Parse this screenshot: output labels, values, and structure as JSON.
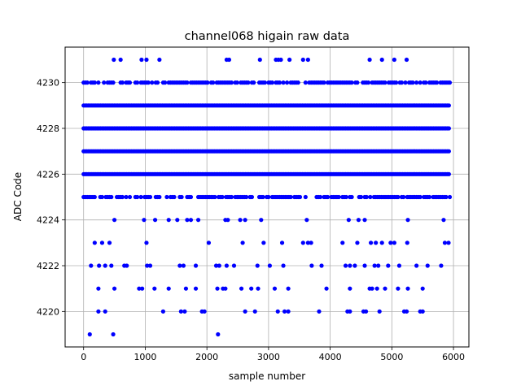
{
  "chart_data": {
    "type": "scatter",
    "title": "channel068 higain raw data",
    "xlabel": "sample number",
    "ylabel": "ADC Code",
    "xlim": [
      -300,
      6250
    ],
    "ylim": [
      4218.45,
      4231.55
    ],
    "xticks": [
      0,
      1000,
      2000,
      3000,
      4000,
      5000,
      6000
    ],
    "yticks": [
      4220,
      4222,
      4224,
      4226,
      4228,
      4230
    ],
    "grid": true,
    "marker_color": "#0000ff",
    "series": [
      {
        "values_dense": [
          {
            "y": 4228,
            "x_range": [
              0,
              5940
            ]
          },
          {
            "y": 4227,
            "x_range": [
              0,
              5940
            ]
          },
          {
            "y": 4226,
            "x_range": [
              0,
              5940
            ]
          },
          {
            "y": 4229,
            "x_range": [
              0,
              5940
            ]
          }
        ],
        "values_semi_dense": [
          {
            "y": 4230,
            "x_range": [
              0,
              5940
            ]
          },
          {
            "y": 4225,
            "x_range": [
              0,
              5940
            ]
          }
        ],
        "points": [
          {
            "x": 490,
            "y": 4231
          },
          {
            "x": 600,
            "y": 4231
          },
          {
            "x": 940,
            "y": 4231
          },
          {
            "x": 1020,
            "y": 4231
          },
          {
            "x": 1230,
            "y": 4231
          },
          {
            "x": 2320,
            "y": 4231
          },
          {
            "x": 2360,
            "y": 4231
          },
          {
            "x": 2860,
            "y": 4231
          },
          {
            "x": 3120,
            "y": 4231
          },
          {
            "x": 3160,
            "y": 4231
          },
          {
            "x": 3200,
            "y": 4231
          },
          {
            "x": 3340,
            "y": 4231
          },
          {
            "x": 3560,
            "y": 4231
          },
          {
            "x": 3640,
            "y": 4231
          },
          {
            "x": 4640,
            "y": 4231
          },
          {
            "x": 4840,
            "y": 4231
          },
          {
            "x": 5040,
            "y": 4231
          },
          {
            "x": 5240,
            "y": 4231
          },
          {
            "x": 500,
            "y": 4224
          },
          {
            "x": 980,
            "y": 4224
          },
          {
            "x": 1160,
            "y": 4224
          },
          {
            "x": 1380,
            "y": 4224
          },
          {
            "x": 1520,
            "y": 4224
          },
          {
            "x": 1680,
            "y": 4224
          },
          {
            "x": 1740,
            "y": 4224
          },
          {
            "x": 1860,
            "y": 4224
          },
          {
            "x": 2300,
            "y": 4224
          },
          {
            "x": 2340,
            "y": 4224
          },
          {
            "x": 2540,
            "y": 4224
          },
          {
            "x": 2620,
            "y": 4224
          },
          {
            "x": 2880,
            "y": 4224
          },
          {
            "x": 3620,
            "y": 4224
          },
          {
            "x": 4300,
            "y": 4224
          },
          {
            "x": 4460,
            "y": 4224
          },
          {
            "x": 4560,
            "y": 4224
          },
          {
            "x": 5260,
            "y": 4224
          },
          {
            "x": 5840,
            "y": 4224
          },
          {
            "x": 2580,
            "y": 4223
          },
          {
            "x": 3220,
            "y": 4223
          },
          {
            "x": 3560,
            "y": 4223
          },
          {
            "x": 3640,
            "y": 4223
          },
          {
            "x": 1020,
            "y": 4223
          },
          {
            "x": 4200,
            "y": 4223
          },
          {
            "x": 4660,
            "y": 4223
          },
          {
            "x": 4840,
            "y": 4223
          },
          {
            "x": 5040,
            "y": 4223
          },
          {
            "x": 4980,
            "y": 4223
          },
          {
            "x": 5860,
            "y": 4223
          },
          {
            "x": 4740,
            "y": 4223
          },
          {
            "x": 4440,
            "y": 4223
          },
          {
            "x": 5250,
            "y": 4223
          },
          {
            "x": 5920,
            "y": 4223
          },
          {
            "x": 180,
            "y": 4223
          },
          {
            "x": 300,
            "y": 4223
          },
          {
            "x": 420,
            "y": 4223
          },
          {
            "x": 2030,
            "y": 4223
          },
          {
            "x": 2920,
            "y": 4223
          },
          {
            "x": 3690,
            "y": 4223
          },
          {
            "x": 120,
            "y": 4222
          },
          {
            "x": 250,
            "y": 4222
          },
          {
            "x": 350,
            "y": 4222
          },
          {
            "x": 450,
            "y": 4222
          },
          {
            "x": 660,
            "y": 4222
          },
          {
            "x": 700,
            "y": 4222
          },
          {
            "x": 1030,
            "y": 4222
          },
          {
            "x": 1080,
            "y": 4222
          },
          {
            "x": 1560,
            "y": 4222
          },
          {
            "x": 1620,
            "y": 4222
          },
          {
            "x": 1820,
            "y": 4222
          },
          {
            "x": 2150,
            "y": 4222
          },
          {
            "x": 2200,
            "y": 4222
          },
          {
            "x": 2320,
            "y": 4222
          },
          {
            "x": 2440,
            "y": 4222
          },
          {
            "x": 2820,
            "y": 4222
          },
          {
            "x": 3020,
            "y": 4222
          },
          {
            "x": 3240,
            "y": 4222
          },
          {
            "x": 3700,
            "y": 4222
          },
          {
            "x": 3860,
            "y": 4222
          },
          {
            "x": 4250,
            "y": 4222
          },
          {
            "x": 4320,
            "y": 4222
          },
          {
            "x": 4400,
            "y": 4222
          },
          {
            "x": 4560,
            "y": 4222
          },
          {
            "x": 4720,
            "y": 4222
          },
          {
            "x": 4780,
            "y": 4222
          },
          {
            "x": 4940,
            "y": 4222
          },
          {
            "x": 5120,
            "y": 4222
          },
          {
            "x": 5400,
            "y": 4222
          },
          {
            "x": 5580,
            "y": 4222
          },
          {
            "x": 5800,
            "y": 4222
          },
          {
            "x": 240,
            "y": 4221
          },
          {
            "x": 500,
            "y": 4221
          },
          {
            "x": 900,
            "y": 4221
          },
          {
            "x": 950,
            "y": 4221
          },
          {
            "x": 1150,
            "y": 4221
          },
          {
            "x": 1380,
            "y": 4221
          },
          {
            "x": 1660,
            "y": 4221
          },
          {
            "x": 1820,
            "y": 4221
          },
          {
            "x": 2170,
            "y": 4221
          },
          {
            "x": 2260,
            "y": 4221
          },
          {
            "x": 2300,
            "y": 4221
          },
          {
            "x": 2560,
            "y": 4221
          },
          {
            "x": 2720,
            "y": 4221
          },
          {
            "x": 2830,
            "y": 4221
          },
          {
            "x": 3100,
            "y": 4221
          },
          {
            "x": 3320,
            "y": 4221
          },
          {
            "x": 3940,
            "y": 4221
          },
          {
            "x": 4320,
            "y": 4221
          },
          {
            "x": 4640,
            "y": 4221
          },
          {
            "x": 4680,
            "y": 4221
          },
          {
            "x": 4760,
            "y": 4221
          },
          {
            "x": 4890,
            "y": 4221
          },
          {
            "x": 5100,
            "y": 4221
          },
          {
            "x": 5260,
            "y": 4221
          },
          {
            "x": 5500,
            "y": 4221
          },
          {
            "x": 240,
            "y": 4220
          },
          {
            "x": 350,
            "y": 4220
          },
          {
            "x": 1290,
            "y": 4220
          },
          {
            "x": 1580,
            "y": 4220
          },
          {
            "x": 1640,
            "y": 4220
          },
          {
            "x": 1920,
            "y": 4220
          },
          {
            "x": 1960,
            "y": 4220
          },
          {
            "x": 2620,
            "y": 4220
          },
          {
            "x": 2780,
            "y": 4220
          },
          {
            "x": 3150,
            "y": 4220
          },
          {
            "x": 3260,
            "y": 4220
          },
          {
            "x": 3320,
            "y": 4220
          },
          {
            "x": 3820,
            "y": 4220
          },
          {
            "x": 4280,
            "y": 4220
          },
          {
            "x": 4320,
            "y": 4220
          },
          {
            "x": 4540,
            "y": 4220
          },
          {
            "x": 4580,
            "y": 4220
          },
          {
            "x": 4800,
            "y": 4220
          },
          {
            "x": 5200,
            "y": 4220
          },
          {
            "x": 5240,
            "y": 4220
          },
          {
            "x": 5460,
            "y": 4220
          },
          {
            "x": 5500,
            "y": 4220
          },
          {
            "x": 100,
            "y": 4219
          },
          {
            "x": 480,
            "y": 4219
          },
          {
            "x": 2180,
            "y": 4219
          }
        ]
      }
    ]
  }
}
